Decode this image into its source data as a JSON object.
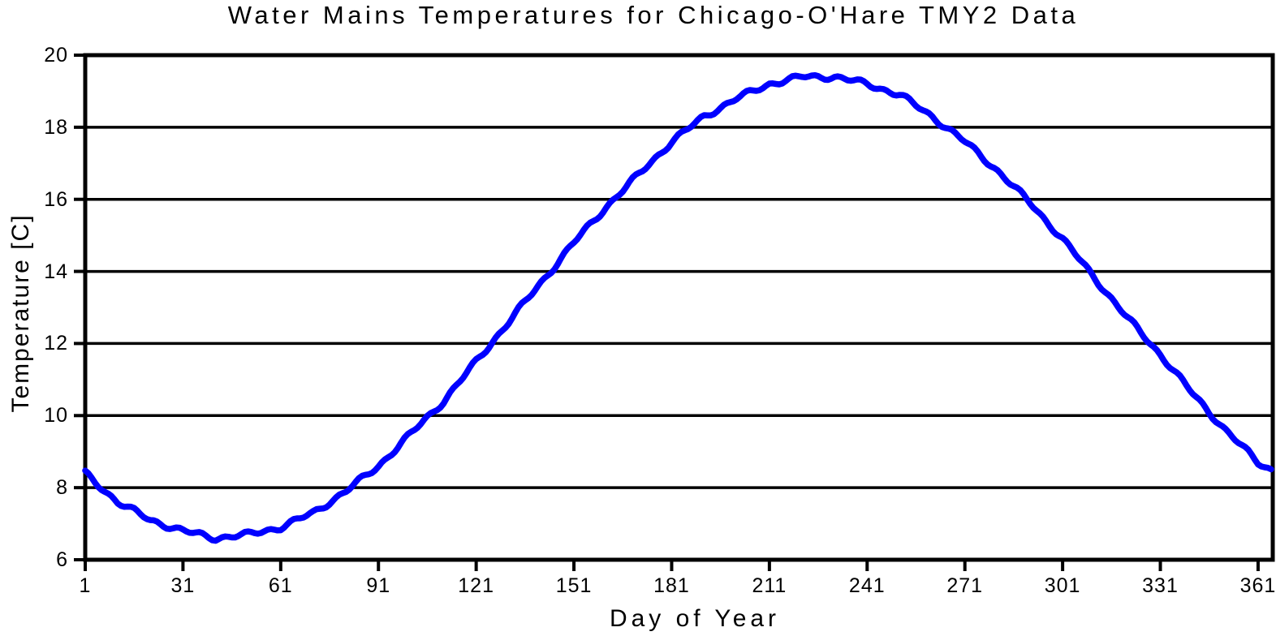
{
  "chart_data": {
    "type": "line",
    "title": "Water Mains Temperatures for Chicago-O'Hare TMY2 Data",
    "xlabel": "Day of Year",
    "ylabel": "Temperature [C]",
    "xlim": [
      1,
      365.5
    ],
    "ylim": [
      6,
      20
    ],
    "x_ticks": [
      1,
      31,
      61,
      91,
      121,
      151,
      181,
      211,
      241,
      271,
      301,
      331,
      361
    ],
    "y_ticks": [
      6,
      8,
      10,
      12,
      14,
      16,
      18,
      20
    ],
    "grid": "horizontal",
    "legend": "none",
    "axis_color": "#000000",
    "background": "#ffffff",
    "series": [
      {
        "name": "water-mains-temperature",
        "color": "#0000ff",
        "x": [
          1,
          11,
          21,
          31,
          41,
          51,
          61,
          71,
          81,
          91,
          101,
          111,
          121,
          131,
          141,
          151,
          161,
          171,
          181,
          191,
          201,
          211,
          221,
          231,
          241,
          251,
          261,
          271,
          281,
          291,
          301,
          311,
          321,
          331,
          341,
          351,
          361,
          365
        ],
        "y": [
          8.4,
          7.6,
          7.1,
          6.8,
          6.6,
          6.7,
          6.9,
          7.3,
          7.9,
          8.6,
          9.5,
          10.4,
          11.5,
          12.6,
          13.7,
          14.8,
          15.8,
          16.7,
          17.6,
          18.3,
          18.8,
          19.2,
          19.4,
          19.4,
          19.2,
          18.9,
          18.3,
          17.6,
          16.8,
          15.9,
          14.9,
          13.8,
          12.7,
          11.7,
          10.6,
          9.6,
          8.7,
          8.5
        ]
      }
    ]
  }
}
